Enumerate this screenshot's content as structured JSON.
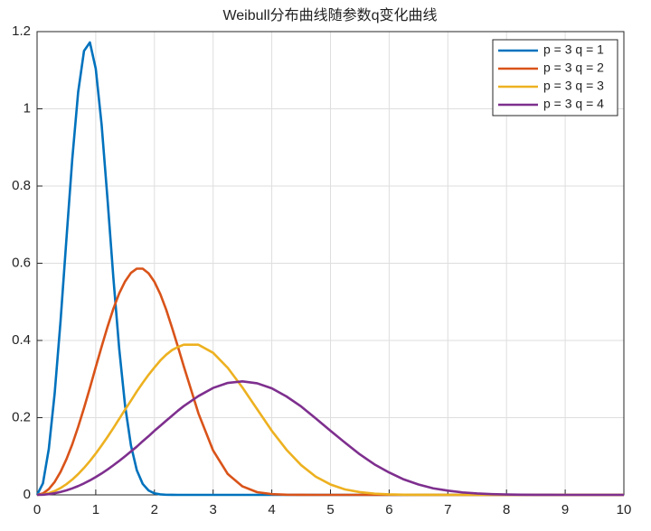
{
  "chart_data": {
    "type": "line",
    "title": "Weibull分布曲线随参数q变化曲线",
    "x": [
      0,
      0.1,
      0.2,
      0.3,
      0.4,
      0.5,
      0.6,
      0.7,
      0.8,
      0.9,
      1,
      1.1,
      1.2,
      1.3,
      1.4,
      1.5,
      1.6,
      1.7,
      1.8,
      1.9,
      2,
      2.1,
      2.2,
      2.3,
      2.4,
      2.5,
      2.75,
      3,
      3.25,
      3.5,
      3.75,
      4,
      4.25,
      4.5,
      4.75,
      5,
      5.25,
      5.5,
      5.75,
      6,
      6.25,
      6.5,
      6.75,
      7,
      7.25,
      7.5,
      7.75,
      8,
      8.25,
      8.5,
      8.75,
      9,
      9.25,
      9.5,
      9.75,
      10
    ],
    "series": [
      {
        "name": "p = 3 q = 1",
        "color": "#0072bd",
        "values": [
          0,
          0.03,
          0.119,
          0.263,
          0.45,
          0.662,
          0.87,
          1.043,
          1.15,
          1.172,
          1.104,
          0.959,
          0.767,
          0.563,
          0.378,
          0.231,
          0.128,
          0.0637,
          0.0285,
          0.0114,
          0.004,
          0.0013,
          0.0003,
          0.0001,
          0,
          0,
          0,
          0,
          0,
          0,
          0,
          0,
          0,
          0,
          0,
          0,
          0,
          0,
          0,
          0,
          0,
          0,
          0,
          0,
          0,
          0,
          0,
          0,
          0,
          0,
          0,
          0,
          0,
          0,
          0,
          0
        ]
      },
      {
        "name": "p = 3 q = 2",
        "color": "#d95319",
        "values": [
          0,
          0.0037,
          0.015,
          0.0336,
          0.0595,
          0.0923,
          0.131,
          0.176,
          0.225,
          0.277,
          0.331,
          0.384,
          0.435,
          0.482,
          0.522,
          0.553,
          0.575,
          0.586,
          0.586,
          0.574,
          0.552,
          0.52,
          0.48,
          0.433,
          0.384,
          0.333,
          0.211,
          0.115,
          0.054,
          0.022,
          0.007,
          0.002,
          0.0005,
          0.0001,
          0,
          0,
          0,
          0,
          0,
          0,
          0,
          0,
          0,
          0,
          0,
          0,
          0,
          0,
          0,
          0,
          0,
          0,
          0,
          0,
          0,
          0
        ]
      },
      {
        "name": "p = 3 q = 3",
        "color": "#edb120",
        "values": [
          0,
          0.0011,
          0.0044,
          0.01,
          0.0177,
          0.0276,
          0.0397,
          0.0538,
          0.0698,
          0.0876,
          0.1071,
          0.128,
          0.15,
          0.173,
          0.197,
          0.221,
          0.244,
          0.268,
          0.29,
          0.311,
          0.33,
          0.348,
          0.363,
          0.375,
          0.383,
          0.389,
          0.389,
          0.368,
          0.329,
          0.278,
          0.222,
          0.166,
          0.117,
          0.077,
          0.047,
          0.027,
          0.014,
          0.0071,
          0.0032,
          0.0013,
          0.0005,
          0.0002,
          0.0001,
          0,
          0,
          0,
          0,
          0,
          0,
          0,
          0,
          0,
          0,
          0,
          0,
          0
        ]
      },
      {
        "name": "p = 3 q = 4",
        "color": "#7e2f8e",
        "values": [
          0,
          0.0005,
          0.0019,
          0.0042,
          0.0075,
          0.0117,
          0.0168,
          0.0228,
          0.0298,
          0.0375,
          0.0461,
          0.0555,
          0.0657,
          0.0766,
          0.088,
          0.1,
          0.1125,
          0.125,
          0.139,
          0.152,
          0.166,
          0.179,
          0.192,
          0.205,
          0.218,
          0.23,
          0.256,
          0.277,
          0.29,
          0.294,
          0.289,
          0.276,
          0.255,
          0.229,
          0.198,
          0.166,
          0.135,
          0.105,
          0.079,
          0.058,
          0.04,
          0.027,
          0.017,
          0.011,
          0.0064,
          0.0036,
          0.002,
          0.001,
          0.0005,
          0.0002,
          0.0001,
          0,
          0,
          0,
          0,
          0
        ]
      }
    ],
    "xlim": [
      0,
      10
    ],
    "xticks": [
      0,
      1,
      2,
      3,
      4,
      5,
      6,
      7,
      8,
      9,
      10
    ],
    "ylim": [
      0,
      1.2
    ],
    "yticks": [
      0,
      0.2,
      0.4,
      0.6,
      0.8,
      1,
      1.2
    ],
    "grid": true,
    "legend": "top-right"
  }
}
